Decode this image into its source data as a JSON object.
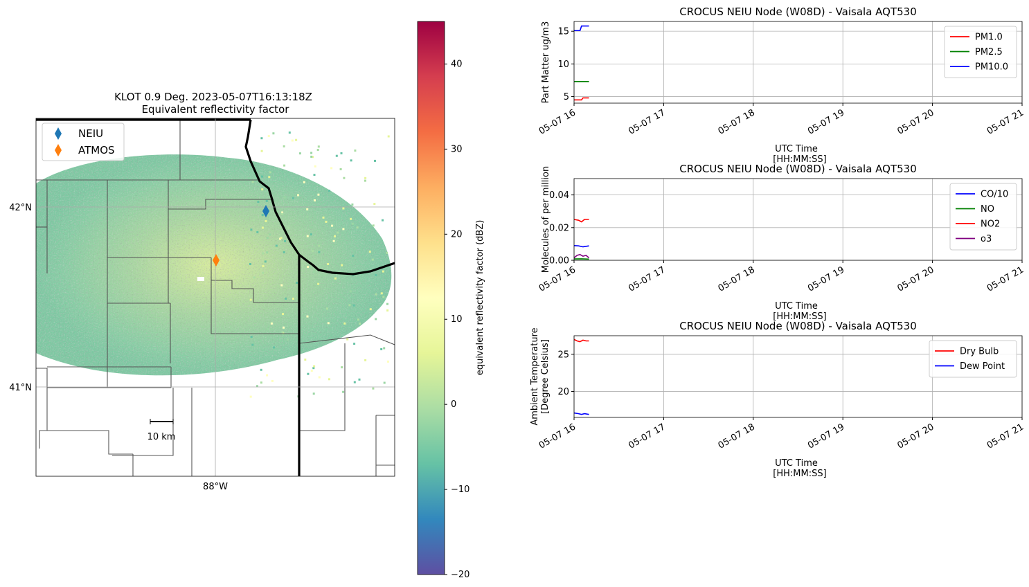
{
  "radar_map": {
    "title": "KLOT 0.9 Deg. 2023-05-07T16:13:18Z",
    "subtitle": "Equivalent reflectivity factor",
    "lat_ticks": [
      "42°N",
      "41°N"
    ],
    "lon_ticks": [
      "88°W"
    ],
    "legend": [
      {
        "label": "NEIU",
        "color": "#1f77b4"
      },
      {
        "label": "ATMOS",
        "color": "#ff7f0e"
      }
    ],
    "scalebar_label": "10 km"
  },
  "colorbar": {
    "label": "equivalent reflectivity factor (dBZ)",
    "ticks": [
      40,
      30,
      20,
      10,
      0,
      -10,
      -20
    ],
    "tick_labels": [
      "40",
      "30",
      "20",
      "10",
      "0",
      "−10",
      "−20"
    ],
    "range": [
      -20,
      45
    ],
    "colormap": "Spectral_r"
  },
  "chart_data": [
    {
      "type": "line",
      "title": "CROCUS NEIU Node (W08D) - Vaisala AQT530",
      "xlabel": "UTC Time\n[HH:MM:SS]",
      "ylabel": "Part Matter ug/m3",
      "x_ticks": [
        "05-07 16",
        "05-07 17",
        "05-07 18",
        "05-07 19",
        "05-07 20",
        "05-07 21"
      ],
      "x_range": [
        "2023-05-07 16:00",
        "2023-05-07 21:00"
      ],
      "y_ticks": [
        "5",
        "10",
        "15"
      ],
      "ylim": [
        4,
        16.5
      ],
      "grid": true,
      "legend_position": "top-right",
      "series": [
        {
          "name": "PM1.0",
          "color": "#ff0000",
          "x": [
            "2023-05-07 16:00",
            "2023-05-07 16:05",
            "2023-05-07 16:06",
            "2023-05-07 16:10"
          ],
          "y": [
            4.5,
            4.5,
            4.8,
            4.8
          ]
        },
        {
          "name": "PM2.5",
          "color": "#008000",
          "x": [
            "2023-05-07 16:00",
            "2023-05-07 16:10"
          ],
          "y": [
            7.3,
            7.3
          ]
        },
        {
          "name": "PM10.0",
          "color": "#0000ff",
          "x": [
            "2023-05-07 16:00",
            "2023-05-07 16:04",
            "2023-05-07 16:05",
            "2023-05-07 16:10"
          ],
          "y": [
            15.1,
            15.1,
            15.8,
            15.8
          ]
        }
      ]
    },
    {
      "type": "line",
      "title": "CROCUS NEIU Node (W08D) - Vaisala AQT530",
      "xlabel": "UTC Time\n[HH:MM:SS]",
      "ylabel": "Molecules of per million",
      "x_ticks": [
        "05-07 16",
        "05-07 17",
        "05-07 18",
        "05-07 19",
        "05-07 20",
        "05-07 21"
      ],
      "x_range": [
        "2023-05-07 16:00",
        "2023-05-07 21:00"
      ],
      "y_ticks": [
        "0.00",
        "0.02",
        "0.04"
      ],
      "ylim": [
        0,
        0.05
      ],
      "grid": true,
      "legend_position": "top-right",
      "series": [
        {
          "name": "CO/10",
          "color": "#0000ff",
          "x": [
            "2023-05-07 16:00",
            "2023-05-07 16:03",
            "2023-05-07 16:06",
            "2023-05-07 16:10"
          ],
          "y": [
            0.009,
            0.0088,
            0.0082,
            0.0088
          ]
        },
        {
          "name": "NO",
          "color": "#008000",
          "x": [
            "2023-05-07 16:00",
            "2023-05-07 16:05",
            "2023-05-07 16:10"
          ],
          "y": [
            0.0008,
            0.0009,
            0.0007
          ]
        },
        {
          "name": "NO2",
          "color": "#ff0000",
          "x": [
            "2023-05-07 16:00",
            "2023-05-07 16:03",
            "2023-05-07 16:05",
            "2023-05-07 16:07",
            "2023-05-07 16:10"
          ],
          "y": [
            0.025,
            0.0245,
            0.0235,
            0.025,
            0.025
          ]
        },
        {
          "name": "o3",
          "color": "#800080",
          "x": [
            "2023-05-07 16:00",
            "2023-05-07 16:02",
            "2023-05-07 16:04",
            "2023-05-07 16:06",
            "2023-05-07 16:08",
            "2023-05-07 16:10"
          ],
          "y": [
            0.0015,
            0.003,
            0.0035,
            0.0025,
            0.003,
            0.0015
          ]
        }
      ]
    },
    {
      "type": "line",
      "title": "CROCUS NEIU Node (W08D) - Vaisala AQT530",
      "xlabel": "UTC Time\n[HH:MM:SS]",
      "ylabel": "Ambient Temperature\n[Degree Celsius]",
      "x_ticks": [
        "05-07 16",
        "05-07 17",
        "05-07 18",
        "05-07 19",
        "05-07 20",
        "05-07 21"
      ],
      "x_range": [
        "2023-05-07 16:00",
        "2023-05-07 21:00"
      ],
      "y_ticks": [
        "20",
        "25"
      ],
      "ylim": [
        16.5,
        27.5
      ],
      "grid": true,
      "legend_position": "top-right",
      "series": [
        {
          "name": "Dry Bulb",
          "color": "#ff0000",
          "x": [
            "2023-05-07 16:00",
            "2023-05-07 16:02",
            "2023-05-07 16:04",
            "2023-05-07 16:06",
            "2023-05-07 16:08",
            "2023-05-07 16:10"
          ],
          "y": [
            27.0,
            26.8,
            26.7,
            26.9,
            26.8,
            26.8
          ]
        },
        {
          "name": "Dew Point",
          "color": "#0000ff",
          "x": [
            "2023-05-07 16:00",
            "2023-05-07 16:03",
            "2023-05-07 16:05",
            "2023-05-07 16:07",
            "2023-05-07 16:10"
          ],
          "y": [
            17.1,
            17.0,
            16.9,
            17.0,
            16.9
          ]
        }
      ]
    }
  ]
}
